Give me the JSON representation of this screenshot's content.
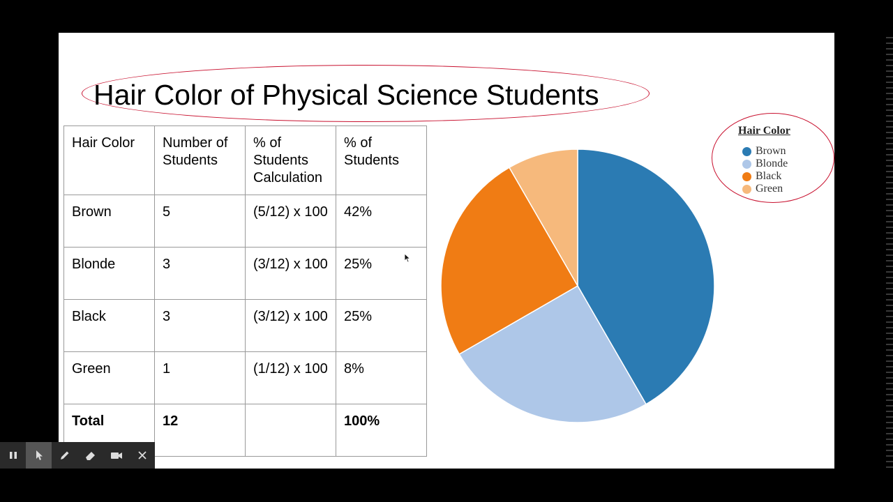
{
  "slide": {
    "title": "Hair Color of Physical Science Students"
  },
  "table": {
    "headers": [
      "Hair Color",
      "Number of Students",
      "% of Students Calculation",
      "% of Students"
    ],
    "rows": [
      {
        "color": "Brown",
        "count": "5",
        "calc": "(5/12) x 100",
        "pct": "42%"
      },
      {
        "color": "Blonde",
        "count": "3",
        "calc": "(3/12) x 100",
        "pct": "25%"
      },
      {
        "color": "Black",
        "count": "3",
        "calc": "(3/12) x 100",
        "pct": "25%"
      },
      {
        "color": "Green",
        "count": "1",
        "calc": "(1/12) x 100",
        "pct": "8%"
      }
    ],
    "total": {
      "label": "Total",
      "count": "12",
      "calc": "",
      "pct": "100%"
    }
  },
  "chart_data": {
    "type": "pie",
    "title": "Hair Color",
    "categories": [
      "Brown",
      "Blonde",
      "Black",
      "Green"
    ],
    "values": [
      5,
      3,
      3,
      1
    ],
    "colors": [
      "#2b7bb3",
      "#aec7e8",
      "#f07c14",
      "#f6b97c"
    ],
    "legend": "top-right"
  },
  "toolbar": {
    "icons": [
      "pause-icon",
      "pointer-icon",
      "pen-icon",
      "eraser-icon",
      "camera-icon",
      "close-icon"
    ]
  }
}
